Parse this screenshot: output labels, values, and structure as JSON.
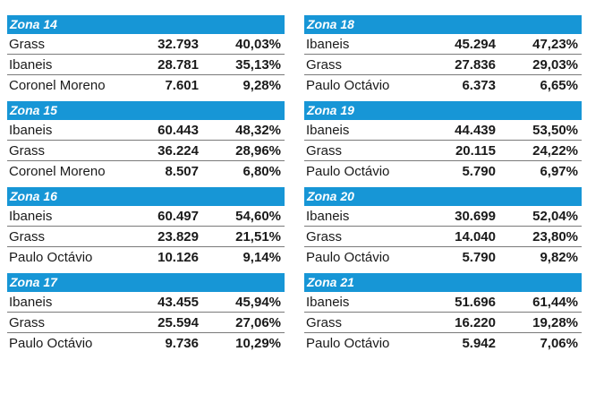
{
  "zones": [
    {
      "title": "Zona 14",
      "rows": [
        {
          "candidate": "Grass",
          "votes": "32.793",
          "pct": "40,03%"
        },
        {
          "candidate": "Ibaneis",
          "votes": "28.781",
          "pct": "35,13%"
        },
        {
          "candidate": "Coronel Moreno",
          "votes": "7.601",
          "pct": "9,28%"
        }
      ]
    },
    {
      "title": "Zona 15",
      "rows": [
        {
          "candidate": "Ibaneis",
          "votes": "60.443",
          "pct": "48,32%"
        },
        {
          "candidate": "Grass",
          "votes": "36.224",
          "pct": "28,96%"
        },
        {
          "candidate": "Coronel Moreno",
          "votes": "8.507",
          "pct": "6,80%"
        }
      ]
    },
    {
      "title": "Zona 16",
      "rows": [
        {
          "candidate": "Ibaneis",
          "votes": "60.497",
          "pct": "54,60%"
        },
        {
          "candidate": "Grass",
          "votes": "23.829",
          "pct": "21,51%"
        },
        {
          "candidate": "Paulo Octávio",
          "votes": "10.126",
          "pct": "9,14%"
        }
      ]
    },
    {
      "title": "Zona 17",
      "rows": [
        {
          "candidate": "Ibaneis",
          "votes": "43.455",
          "pct": "45,94%"
        },
        {
          "candidate": "Grass",
          "votes": "25.594",
          "pct": "27,06%"
        },
        {
          "candidate": "Paulo Octávio",
          "votes": "9.736",
          "pct": "10,29%"
        }
      ]
    },
    {
      "title": "Zona 18",
      "rows": [
        {
          "candidate": "Ibaneis",
          "votes": "45.294",
          "pct": "47,23%"
        },
        {
          "candidate": "Grass",
          "votes": "27.836",
          "pct": "29,03%"
        },
        {
          "candidate": "Paulo Octávio",
          "votes": "6.373",
          "pct": "6,65%"
        }
      ]
    },
    {
      "title": "Zona 19",
      "rows": [
        {
          "candidate": "Ibaneis",
          "votes": "44.439",
          "pct": "53,50%"
        },
        {
          "candidate": "Grass",
          "votes": "20.115",
          "pct": "24,22%"
        },
        {
          "candidate": "Paulo Octávio",
          "votes": "5.790",
          "pct": "6,97%"
        }
      ]
    },
    {
      "title": "Zona 20",
      "rows": [
        {
          "candidate": "Ibaneis",
          "votes": "30.699",
          "pct": "52,04%"
        },
        {
          "candidate": "Grass",
          "votes": "14.040",
          "pct": "23,80%"
        },
        {
          "candidate": "Paulo Octávio",
          "votes": "5.790",
          "pct": "9,82%"
        }
      ]
    },
    {
      "title": "Zona 21",
      "rows": [
        {
          "candidate": "Ibaneis",
          "votes": "51.696",
          "pct": "61,44%"
        },
        {
          "candidate": "Grass",
          "votes": "16.220",
          "pct": "19,28%"
        },
        {
          "candidate": "Paulo Octávio",
          "votes": "5.942",
          "pct": "7,06%"
        }
      ]
    }
  ],
  "colors": {
    "header_bg": "#1796d6",
    "header_text": "#ffffff",
    "row_divider": "#7a7a7a"
  }
}
